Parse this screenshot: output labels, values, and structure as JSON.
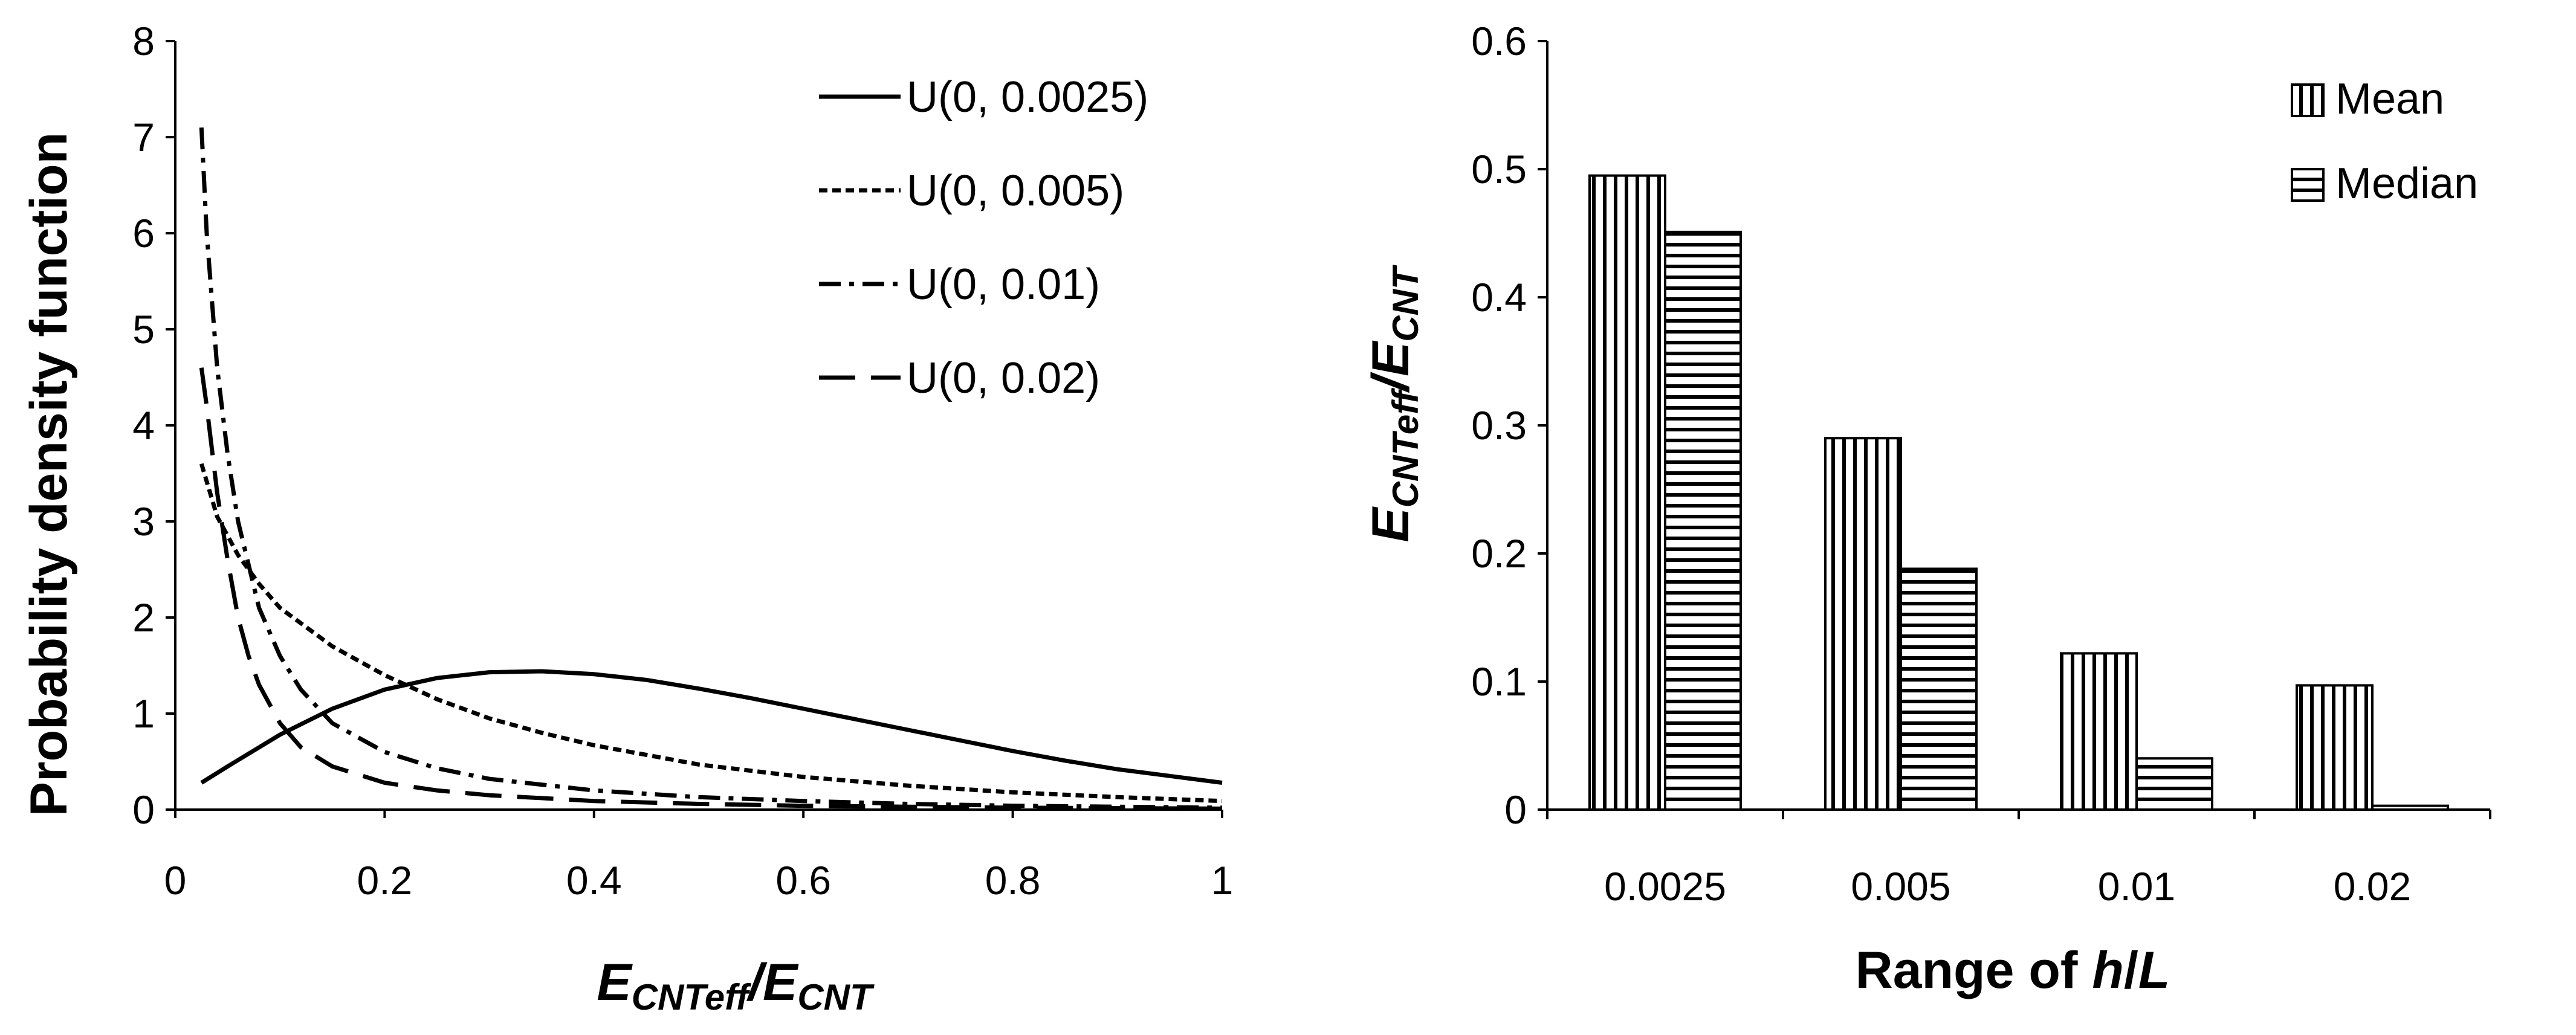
{
  "chart_data": [
    {
      "type": "line",
      "title": "",
      "xlabel": {
        "main": "E",
        "sub1": "CNTeff",
        "slash": "/",
        "main2": "E",
        "sub2": "CNT"
      },
      "ylabel": "Probability density function",
      "xlim": [
        0,
        1
      ],
      "ylim": [
        0,
        8
      ],
      "xticks": [
        "0",
        "0.2",
        "0.4",
        "0.6",
        "0.8",
        "1"
      ],
      "yticks": [
        "0",
        "1",
        "2",
        "3",
        "4",
        "5",
        "6",
        "7",
        "8"
      ],
      "legend_position": "top-right",
      "series": [
        {
          "name": "U(0, 0.0025)",
          "style": "solid",
          "x": [
            0.025,
            0.05,
            0.1,
            0.15,
            0.2,
            0.25,
            0.3,
            0.35,
            0.4,
            0.45,
            0.5,
            0.55,
            0.6,
            0.65,
            0.7,
            0.75,
            0.8,
            0.85,
            0.9,
            0.95,
            1.0
          ],
          "y": [
            0.28,
            0.45,
            0.78,
            1.05,
            1.25,
            1.37,
            1.43,
            1.44,
            1.41,
            1.35,
            1.26,
            1.16,
            1.05,
            0.94,
            0.83,
            0.72,
            0.61,
            0.51,
            0.42,
            0.35,
            0.28
          ]
        },
        {
          "name": "U(0, 0.005)",
          "style": "dotted",
          "x": [
            0.025,
            0.04,
            0.06,
            0.08,
            0.1,
            0.15,
            0.2,
            0.25,
            0.3,
            0.35,
            0.4,
            0.5,
            0.6,
            0.7,
            0.8,
            0.9,
            1.0
          ],
          "y": [
            3.6,
            3.05,
            2.65,
            2.35,
            2.1,
            1.7,
            1.4,
            1.15,
            0.95,
            0.8,
            0.67,
            0.47,
            0.34,
            0.25,
            0.18,
            0.13,
            0.09
          ]
        },
        {
          "name": "U(0, 0.01)",
          "style": "dash-dot",
          "x": [
            0.025,
            0.03,
            0.04,
            0.05,
            0.06,
            0.08,
            0.1,
            0.12,
            0.15,
            0.2,
            0.25,
            0.3,
            0.4,
            0.5,
            0.6,
            0.7,
            0.8,
            0.9,
            1.0
          ],
          "y": [
            7.1,
            6.0,
            4.6,
            3.7,
            3.0,
            2.1,
            1.6,
            1.25,
            0.9,
            0.6,
            0.43,
            0.32,
            0.2,
            0.13,
            0.09,
            0.06,
            0.04,
            0.03,
            0.02
          ]
        },
        {
          "name": "U(0, 0.02)",
          "style": "dashed",
          "x": [
            0.025,
            0.03,
            0.04,
            0.05,
            0.06,
            0.07,
            0.08,
            0.1,
            0.12,
            0.15,
            0.2,
            0.25,
            0.3,
            0.4,
            0.5,
            0.6,
            0.7,
            0.8,
            0.9,
            1.0
          ],
          "y": [
            4.6,
            4.2,
            3.3,
            2.6,
            2.0,
            1.6,
            1.3,
            0.9,
            0.65,
            0.45,
            0.28,
            0.2,
            0.15,
            0.09,
            0.06,
            0.04,
            0.03,
            0.02,
            0.015,
            0.01
          ]
        }
      ]
    },
    {
      "type": "bar",
      "title": "",
      "xlabel": {
        "prefix": "Range of ",
        "var1": "h",
        "slash": "/",
        "var2": "L"
      },
      "ylabel": {
        "main": "E",
        "sub1": "CNTeff",
        "slash": "/",
        "main2": "E",
        "sub2": "CNT"
      },
      "categories": [
        "0.0025",
        "0.005",
        "0.01",
        "0.02"
      ],
      "ylim": [
        0,
        0.6
      ],
      "yticks": [
        "0",
        "0.1",
        "0.2",
        "0.3",
        "0.4",
        "0.5",
        "0.6"
      ],
      "legend_position": "top-right",
      "series": [
        {
          "name": "Mean",
          "pattern": "vertical-hatch",
          "values": [
            0.495,
            0.29,
            0.122,
            0.097
          ]
        },
        {
          "name": "Median",
          "pattern": "horizontal-hatch",
          "values": [
            0.451,
            0.188,
            0.04,
            0.003
          ]
        }
      ]
    }
  ]
}
